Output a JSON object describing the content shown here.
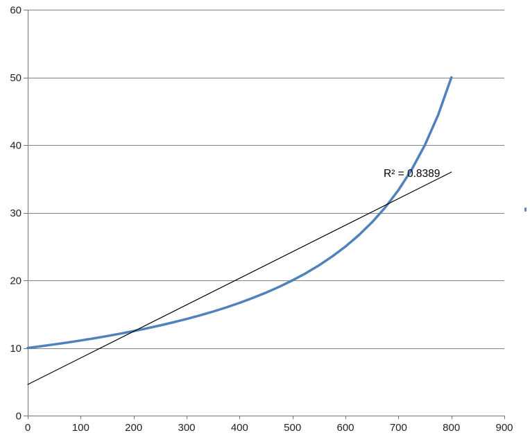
{
  "chart_data": {
    "type": "line",
    "title": "",
    "xlabel": "",
    "ylabel": "",
    "xlim": [
      0,
      900
    ],
    "ylim": [
      0,
      60
    ],
    "x_ticks": [
      0,
      100,
      200,
      300,
      400,
      500,
      600,
      700,
      800,
      900
    ],
    "y_ticks": [
      0,
      10,
      20,
      30,
      40,
      50,
      60
    ],
    "grid": "horizontal-only",
    "legend": "none",
    "annotation": {
      "text": "R² = 0.8389",
      "x": 672,
      "y": 35.3
    },
    "colors": {
      "series": "#4F81BD",
      "trendline": "#000000",
      "gridline": "#828282",
      "axis": "#767676",
      "label": "#1f1f1f",
      "background": "#ffffff",
      "artifact": "#5b8ac2"
    },
    "series": [
      {
        "name": "data-curve",
        "role": "data",
        "color": "#4F81BD",
        "stroke_width": 3.5,
        "points": [
          [
            0,
            10
          ],
          [
            25,
            10.26
          ],
          [
            50,
            10.53
          ],
          [
            75,
            10.81
          ],
          [
            100,
            11.11
          ],
          [
            125,
            11.43
          ],
          [
            150,
            11.76
          ],
          [
            175,
            12.12
          ],
          [
            200,
            12.5
          ],
          [
            225,
            12.9
          ],
          [
            250,
            13.33
          ],
          [
            275,
            13.79
          ],
          [
            300,
            14.29
          ],
          [
            325,
            14.81
          ],
          [
            350,
            15.38
          ],
          [
            375,
            16
          ],
          [
            400,
            16.67
          ],
          [
            425,
            17.39
          ],
          [
            450,
            18.18
          ],
          [
            475,
            19.05
          ],
          [
            500,
            20
          ],
          [
            525,
            21.05
          ],
          [
            550,
            22.22
          ],
          [
            575,
            23.53
          ],
          [
            600,
            25
          ],
          [
            625,
            26.67
          ],
          [
            650,
            28.57
          ],
          [
            675,
            30.77
          ],
          [
            700,
            33.33
          ],
          [
            725,
            36.36
          ],
          [
            750,
            40
          ],
          [
            775,
            44.44
          ],
          [
            800,
            50
          ]
        ]
      },
      {
        "name": "linear-trendline",
        "role": "trendline",
        "color": "#000000",
        "stroke_width": 1.2,
        "points": [
          [
            0,
            4.6
          ],
          [
            800,
            36
          ]
        ]
      }
    ]
  }
}
